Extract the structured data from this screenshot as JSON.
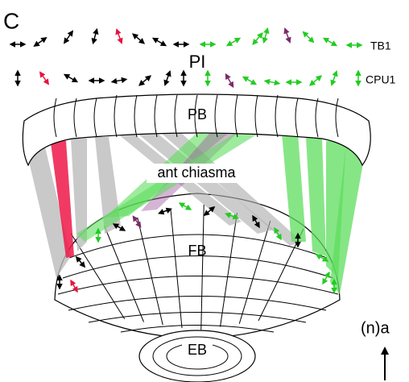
{
  "panel_label": "C",
  "rows": [
    {
      "label": "TB1"
    },
    {
      "label": "CPU1"
    }
  ],
  "center_label": "PI",
  "regions": {
    "pb": "PB",
    "chiasma": "ant chiasma",
    "fb": "FB",
    "eb": "EB"
  },
  "orientation": "(n)a"
}
